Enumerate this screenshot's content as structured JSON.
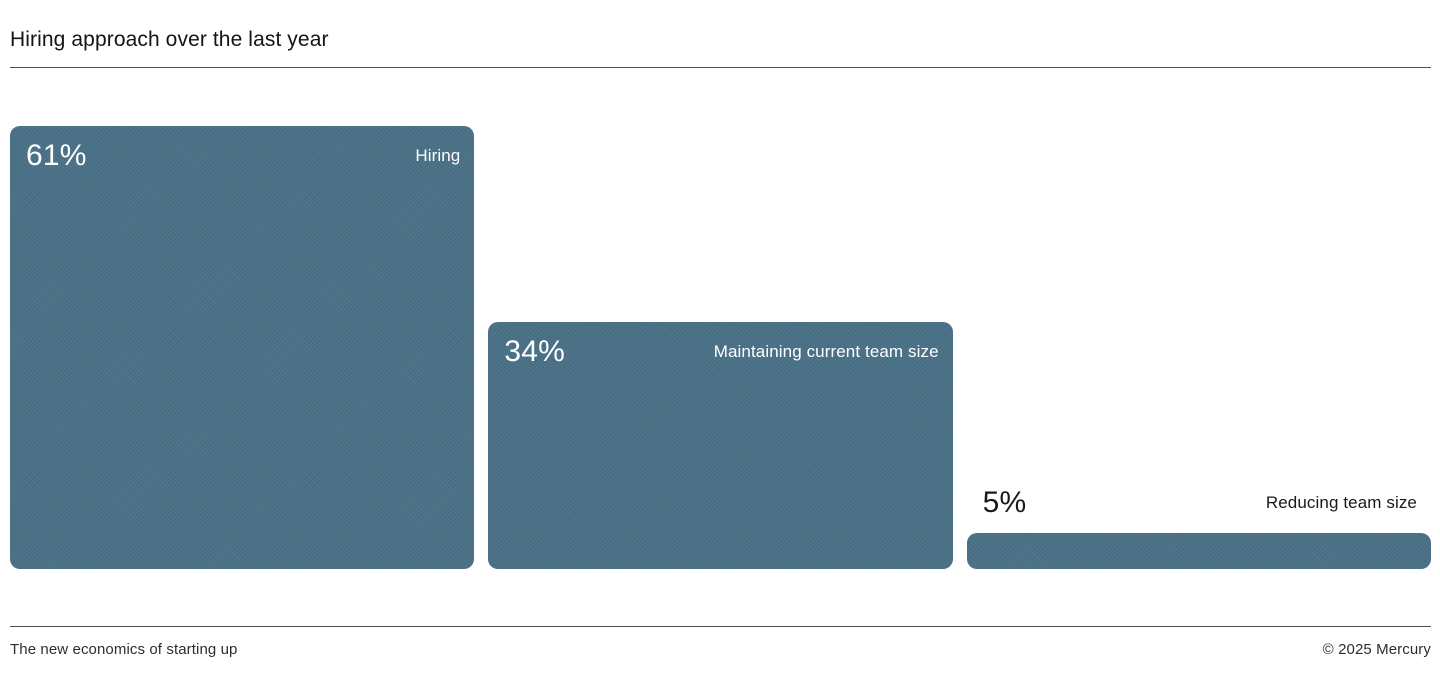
{
  "header": {
    "title": "Hiring approach over the last year"
  },
  "footer": {
    "left": "The new economics of starting up",
    "right": "© 2025 Mercury"
  },
  "colors": {
    "bar": "#4a7187",
    "text_dark": "#1a1a1a",
    "text_light": "#ffffff",
    "divider": "#4f4f4f",
    "background": "#ffffff"
  },
  "chart_data": {
    "type": "bar",
    "title": "Hiring approach over the last year",
    "categories": [
      "Hiring",
      "Maintaining current team size",
      "Reducing team size"
    ],
    "values": [
      61,
      34,
      5
    ],
    "value_labels": [
      "61%",
      "34%",
      "5%"
    ],
    "unit": "%",
    "xlabel": "",
    "ylabel": "",
    "ylim": [
      0,
      61
    ],
    "grid": false,
    "legend": false,
    "orientation": "vertical",
    "bar_color": "#4a7187",
    "label_inside": [
      true,
      true,
      false
    ]
  }
}
